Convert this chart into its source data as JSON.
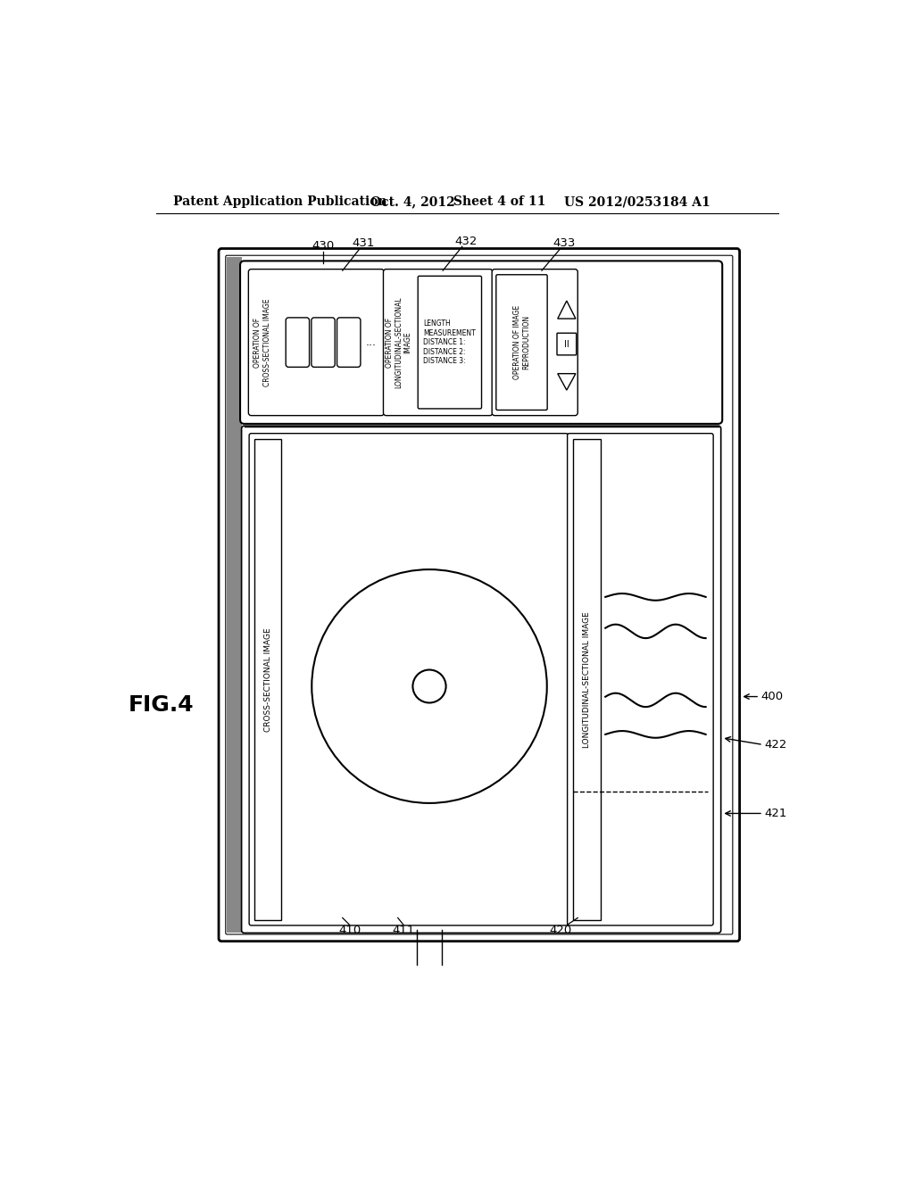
{
  "bg_color": "#ffffff",
  "header_text1": "Patent Application Publication",
  "header_text2": "Oct. 4, 2012",
  "header_text3": "Sheet 4 of 11",
  "header_text4": "US 2012/0253184 A1",
  "fig_label": "FIG.4",
  "label_cross": "CROSS-SECTIONAL IMAGE",
  "label_long": "LONGITUDINAL-SECTIONAL IMAGE",
  "label_op_cross": "OPERATION OF\nCROSS-SECTIONAL IMAGE",
  "label_op_long": "OPERATION OF\nLONGITUDINAL-SECTIONAL\nIMAGE",
  "label_length": "LENGTH\nMEASUREMENT\nDISTANCE 1:\nDISTANCE 2:\nDISTANCE 3:",
  "label_op_repro": "OPERATION OF IMAGE\nREPRODUCTION",
  "refs": [
    "430",
    "431",
    "432",
    "433",
    "400",
    "410",
    "411",
    "420",
    "421",
    "422"
  ]
}
